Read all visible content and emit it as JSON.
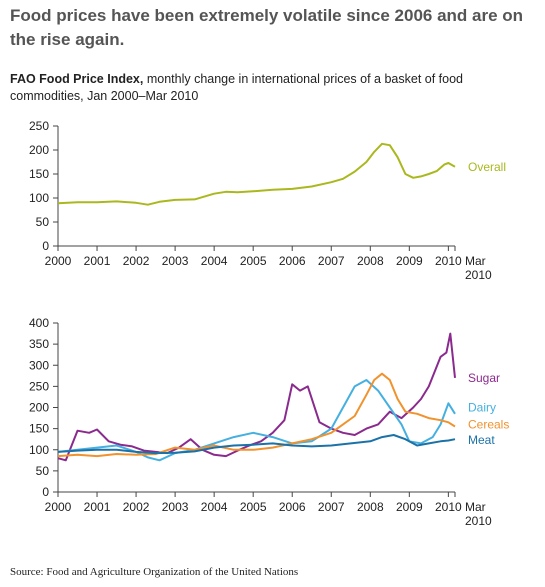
{
  "headline": "Food prices have been extremely volatile since 2006 and are on the rise again.",
  "subtitle": {
    "bold": "FAO Food Price Index,",
    "rest": " monthly change in international prices of a basket of food commodities, Jan 2000–Mar 2010"
  },
  "source": "Source: Food and Agriculture Organization of the United Nations",
  "chart_data": [
    {
      "type": "line",
      "title": "",
      "xlabel": "",
      "ylabel": "",
      "xlim": [
        2000,
        2010.17
      ],
      "ylim": [
        0,
        250
      ],
      "y_ticks": [
        0,
        50,
        100,
        150,
        200,
        250
      ],
      "x_ticks": [
        "2000",
        "2001",
        "2002",
        "2003",
        "2004",
        "2005",
        "2006",
        "2007",
        "2008",
        "2009",
        "2010"
      ],
      "end_label": [
        "Mar",
        "2010"
      ],
      "grid": false,
      "series": [
        {
          "name": "Overall",
          "color": "#aab81e",
          "x": [
            2000,
            2000.5,
            2001,
            2001.5,
            2002,
            2002.3,
            2002.6,
            2003,
            2003.5,
            2004,
            2004.3,
            2004.6,
            2005,
            2005.5,
            2006,
            2006.5,
            2007,
            2007.3,
            2007.6,
            2007.9,
            2008.1,
            2008.3,
            2008.5,
            2008.7,
            2008.9,
            2009.1,
            2009.3,
            2009.5,
            2009.7,
            2009.9,
            2010,
            2010.17
          ],
          "values": [
            89,
            91,
            91,
            93,
            90,
            86,
            92,
            96,
            97,
            109,
            113,
            112,
            114,
            117,
            119,
            124,
            133,
            140,
            155,
            175,
            196,
            213,
            210,
            185,
            150,
            142,
            145,
            150,
            156,
            170,
            173,
            165
          ]
        }
      ]
    },
    {
      "type": "line",
      "title": "",
      "xlabel": "",
      "ylabel": "",
      "xlim": [
        2000,
        2010.17
      ],
      "ylim": [
        0,
        400
      ],
      "y_ticks": [
        0,
        50,
        100,
        150,
        200,
        250,
        300,
        350,
        400
      ],
      "x_ticks": [
        "2000",
        "2001",
        "2002",
        "2003",
        "2004",
        "2005",
        "2006",
        "2007",
        "2008",
        "2009",
        "2010"
      ],
      "end_label": [
        "Mar",
        "2010"
      ],
      "grid": false,
      "series": [
        {
          "name": "Sugar",
          "color": "#8b2a8e",
          "x": [
            2000,
            2000.2,
            2000.5,
            2000.8,
            2001,
            2001.3,
            2001.6,
            2001.9,
            2002.2,
            2002.5,
            2002.8,
            2003.1,
            2003.4,
            2003.7,
            2004,
            2004.3,
            2004.6,
            2004.9,
            2005.2,
            2005.5,
            2005.8,
            2006,
            2006.2,
            2006.4,
            2006.7,
            2007,
            2007.3,
            2007.6,
            2007.9,
            2008.2,
            2008.5,
            2008.8,
            2009.1,
            2009.3,
            2009.5,
            2009.8,
            2009.95,
            2010.05,
            2010.17
          ],
          "values": [
            80,
            75,
            145,
            140,
            148,
            120,
            112,
            108,
            98,
            95,
            92,
            105,
            125,
            100,
            88,
            85,
            98,
            110,
            120,
            140,
            170,
            255,
            240,
            250,
            165,
            150,
            140,
            135,
            150,
            160,
            190,
            175,
            200,
            220,
            250,
            320,
            330,
            375,
            270
          ]
        },
        {
          "name": "Dairy",
          "color": "#45b0e0",
          "x": [
            2000,
            2000.5,
            2001,
            2001.5,
            2002,
            2002.3,
            2002.6,
            2003,
            2003.5,
            2004,
            2004.5,
            2005,
            2005.5,
            2006,
            2006.5,
            2007,
            2007.3,
            2007.6,
            2007.9,
            2008.2,
            2008.5,
            2008.8,
            2009,
            2009.3,
            2009.6,
            2009.8,
            2010,
            2010.17
          ],
          "values": [
            95,
            100,
            105,
            110,
            95,
            82,
            75,
            92,
            100,
            115,
            130,
            140,
            130,
            115,
            120,
            150,
            200,
            250,
            265,
            240,
            200,
            160,
            120,
            115,
            130,
            160,
            210,
            185
          ]
        },
        {
          "name": "Cereals",
          "color": "#f0922e",
          "x": [
            2000,
            2000.5,
            2001,
            2001.5,
            2002,
            2002.5,
            2003,
            2003.5,
            2004,
            2004.5,
            2005,
            2005.5,
            2006,
            2006.5,
            2007,
            2007.3,
            2007.6,
            2007.9,
            2008.1,
            2008.3,
            2008.5,
            2008.7,
            2008.9,
            2009.2,
            2009.5,
            2009.8,
            2010,
            2010.17
          ],
          "values": [
            85,
            88,
            85,
            90,
            88,
            90,
            105,
            100,
            110,
            100,
            100,
            105,
            115,
            125,
            140,
            160,
            180,
            230,
            265,
            280,
            265,
            220,
            190,
            185,
            175,
            170,
            165,
            155
          ]
        },
        {
          "name": "Meat",
          "color": "#1b72a8",
          "x": [
            2000,
            2000.5,
            2001,
            2001.5,
            2002,
            2002.5,
            2003,
            2003.5,
            2004,
            2004.5,
            2005,
            2005.5,
            2006,
            2006.5,
            2007,
            2007.5,
            2008,
            2008.3,
            2008.6,
            2008.9,
            2009.2,
            2009.5,
            2009.8,
            2010,
            2010.17
          ],
          "values": [
            95,
            98,
            100,
            100,
            95,
            92,
            93,
            96,
            105,
            110,
            112,
            115,
            110,
            108,
            110,
            115,
            120,
            130,
            135,
            125,
            110,
            115,
            120,
            122,
            125
          ]
        }
      ]
    }
  ]
}
